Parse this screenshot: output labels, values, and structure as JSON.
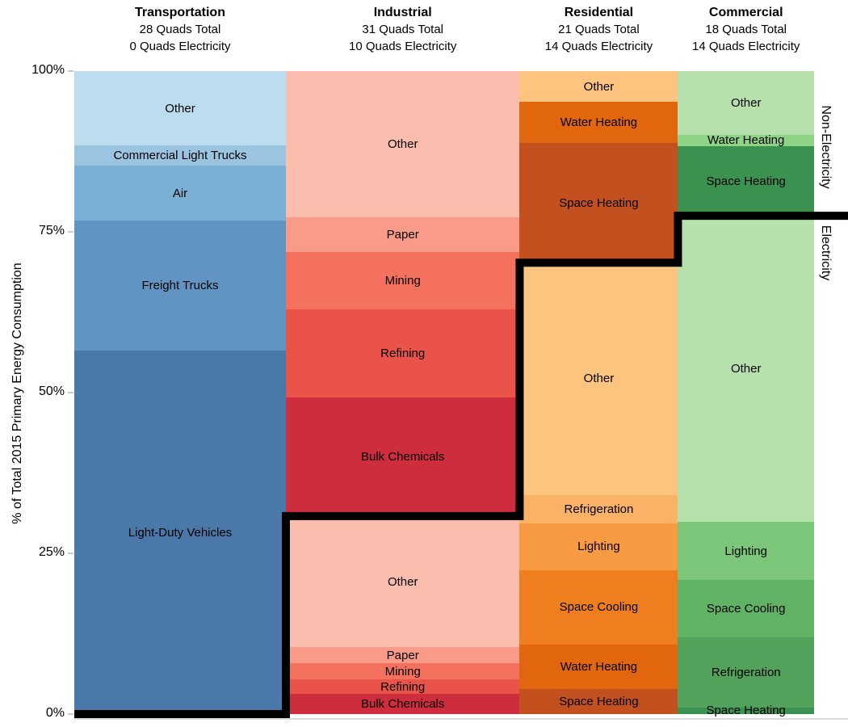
{
  "side_labels": {
    "non_electricity": "Non-Electricity",
    "electricity": "Electricity"
  },
  "y_ticks": [
    {
      "label": "100%",
      "pct_from_top": 0
    },
    {
      "label": "75%",
      "pct_from_top": 25
    },
    {
      "label": "50%",
      "pct_from_top": 50
    },
    {
      "label": "25%",
      "pct_from_top": 75
    },
    {
      "label": "0%",
      "pct_from_top": 100
    }
  ],
  "chart_data": {
    "type": "marimekko-stacked-bar",
    "title": "",
    "ylabel": "% of Total 2015 Primary Energy Consumption",
    "ylim": [
      0,
      100
    ],
    "yticks": [
      "0%",
      "25%",
      "50%",
      "75%",
      "100%"
    ],
    "notes": "Column widths proportional to total quads (28+31+21+18=98). Thick black step line separates Non-Electricity (above) from Electricity (below). Segment values are % of each column's total.",
    "columns": [
      {
        "name": "Transportation",
        "subtitle_total": "28 Quads Total",
        "subtitle_electricity": "0 Quads Electricity",
        "total_quads": 28,
        "electricity_quads": 0,
        "width_pct": 28.6,
        "electricity_boundary_pct_from_top": 100,
        "segments": [
          {
            "label": "Other",
            "pct": 11.6,
            "color": "#BCDCEF",
            "section": "non-electricity"
          },
          {
            "label": "Commercial Light Trucks",
            "pct": 3.1,
            "color": "#9AC4E0",
            "section": "non-electricity"
          },
          {
            "label": "Air",
            "pct": 8.6,
            "color": "#7BAFD4",
            "section": "non-electricity"
          },
          {
            "label": "Freight Trucks",
            "pct": 20.2,
            "color": "#6194C2",
            "section": "non-electricity"
          },
          {
            "label": "Light-Duty Vehicles",
            "pct": 56.5,
            "color": "#4A79A9",
            "section": "non-electricity"
          }
        ]
      },
      {
        "name": "Industrial",
        "subtitle_total": "31 Quads Total",
        "subtitle_electricity": "10 Quads Electricity",
        "total_quads": 31,
        "electricity_quads": 10,
        "width_pct": 31.6,
        "electricity_boundary_pct_from_top": 69.2,
        "segments": [
          {
            "label": "Other",
            "pct": 22.8,
            "color": "#FBBDAE",
            "section": "non-electricity"
          },
          {
            "label": "Paper",
            "pct": 5.3,
            "color": "#FA9A88",
            "section": "non-electricity"
          },
          {
            "label": "Mining",
            "pct": 8.9,
            "color": "#F4715E",
            "section": "non-electricity"
          },
          {
            "label": "Refining",
            "pct": 13.8,
            "color": "#E9534A",
            "section": "non-electricity"
          },
          {
            "label": "Bulk Chemicals",
            "pct": 18.4,
            "color": "#CE2D3E",
            "section": "non-electricity"
          },
          {
            "label": "Other",
            "pct": 20.4,
            "color": "#FBBDAE",
            "section": "electricity"
          },
          {
            "label": "Paper",
            "pct": 2.5,
            "color": "#FA9A88",
            "section": "electricity"
          },
          {
            "label": "Mining",
            "pct": 2.5,
            "color": "#F4715E",
            "section": "electricity"
          },
          {
            "label": "Refining",
            "pct": 2.3,
            "color": "#E9534A",
            "section": "electricity"
          },
          {
            "label": "Bulk Chemicals",
            "pct": 3.1,
            "color": "#CE2D3E",
            "section": "electricity"
          }
        ]
      },
      {
        "name": "Residential",
        "subtitle_total": "21 Quads Total",
        "subtitle_electricity": "14 Quads Electricity",
        "total_quads": 21,
        "electricity_quads": 14,
        "width_pct": 21.4,
        "electricity_boundary_pct_from_top": 29.8,
        "segments": [
          {
            "label": "Other",
            "pct": 4.8,
            "color": "#FCC47E",
            "section": "non-electricity"
          },
          {
            "label": "Water Heating",
            "pct": 6.4,
            "color": "#E1660D",
            "section": "non-electricity"
          },
          {
            "label": "Space Heating",
            "pct": 18.6,
            "color": "#C35120",
            "section": "non-electricity"
          },
          {
            "label": "Other",
            "pct": 36.1,
            "color": "#FCC47E",
            "section": "electricity"
          },
          {
            "label": "Refrigeration",
            "pct": 4.5,
            "color": "#FAB366",
            "section": "electricity"
          },
          {
            "label": "Lighting",
            "pct": 7.2,
            "color": "#F79A41",
            "section": "electricity"
          },
          {
            "label": "Space Cooling",
            "pct": 11.6,
            "color": "#EF7E1E",
            "section": "electricity"
          },
          {
            "label": "Water Heating",
            "pct": 6.9,
            "color": "#E1660D",
            "section": "electricity"
          },
          {
            "label": "Space Heating",
            "pct": 3.9,
            "color": "#C35120",
            "section": "electricity"
          }
        ]
      },
      {
        "name": "Commercial",
        "subtitle_total": "18 Quads Total",
        "subtitle_electricity": "14 Quads Electricity",
        "total_quads": 18,
        "electricity_quads": 14,
        "width_pct": 18.4,
        "electricity_boundary_pct_from_top": 22.5,
        "segments": [
          {
            "label": "Other",
            "pct": 9.9,
            "color": "#B7E1AC",
            "section": "non-electricity"
          },
          {
            "label": "Water Heating",
            "pct": 1.8,
            "color": "#8FD386",
            "section": "non-electricity"
          },
          {
            "label": "Space Heating",
            "pct": 10.8,
            "color": "#3B9150",
            "section": "non-electricity"
          },
          {
            "label": "Other",
            "pct": 47.6,
            "color": "#B7E1AC",
            "section": "electricity"
          },
          {
            "label": "Lighting",
            "pct": 9.1,
            "color": "#7CC679",
            "section": "electricity"
          },
          {
            "label": "Space Cooling",
            "pct": 8.9,
            "color": "#60B264",
            "section": "electricity"
          },
          {
            "label": "Refrigeration",
            "pct": 10.9,
            "color": "#52A25B",
            "section": "electricity"
          },
          {
            "label": "Space Heating",
            "pct": 1.0,
            "color": "#3B9150",
            "section": "electricity"
          }
        ]
      }
    ]
  }
}
